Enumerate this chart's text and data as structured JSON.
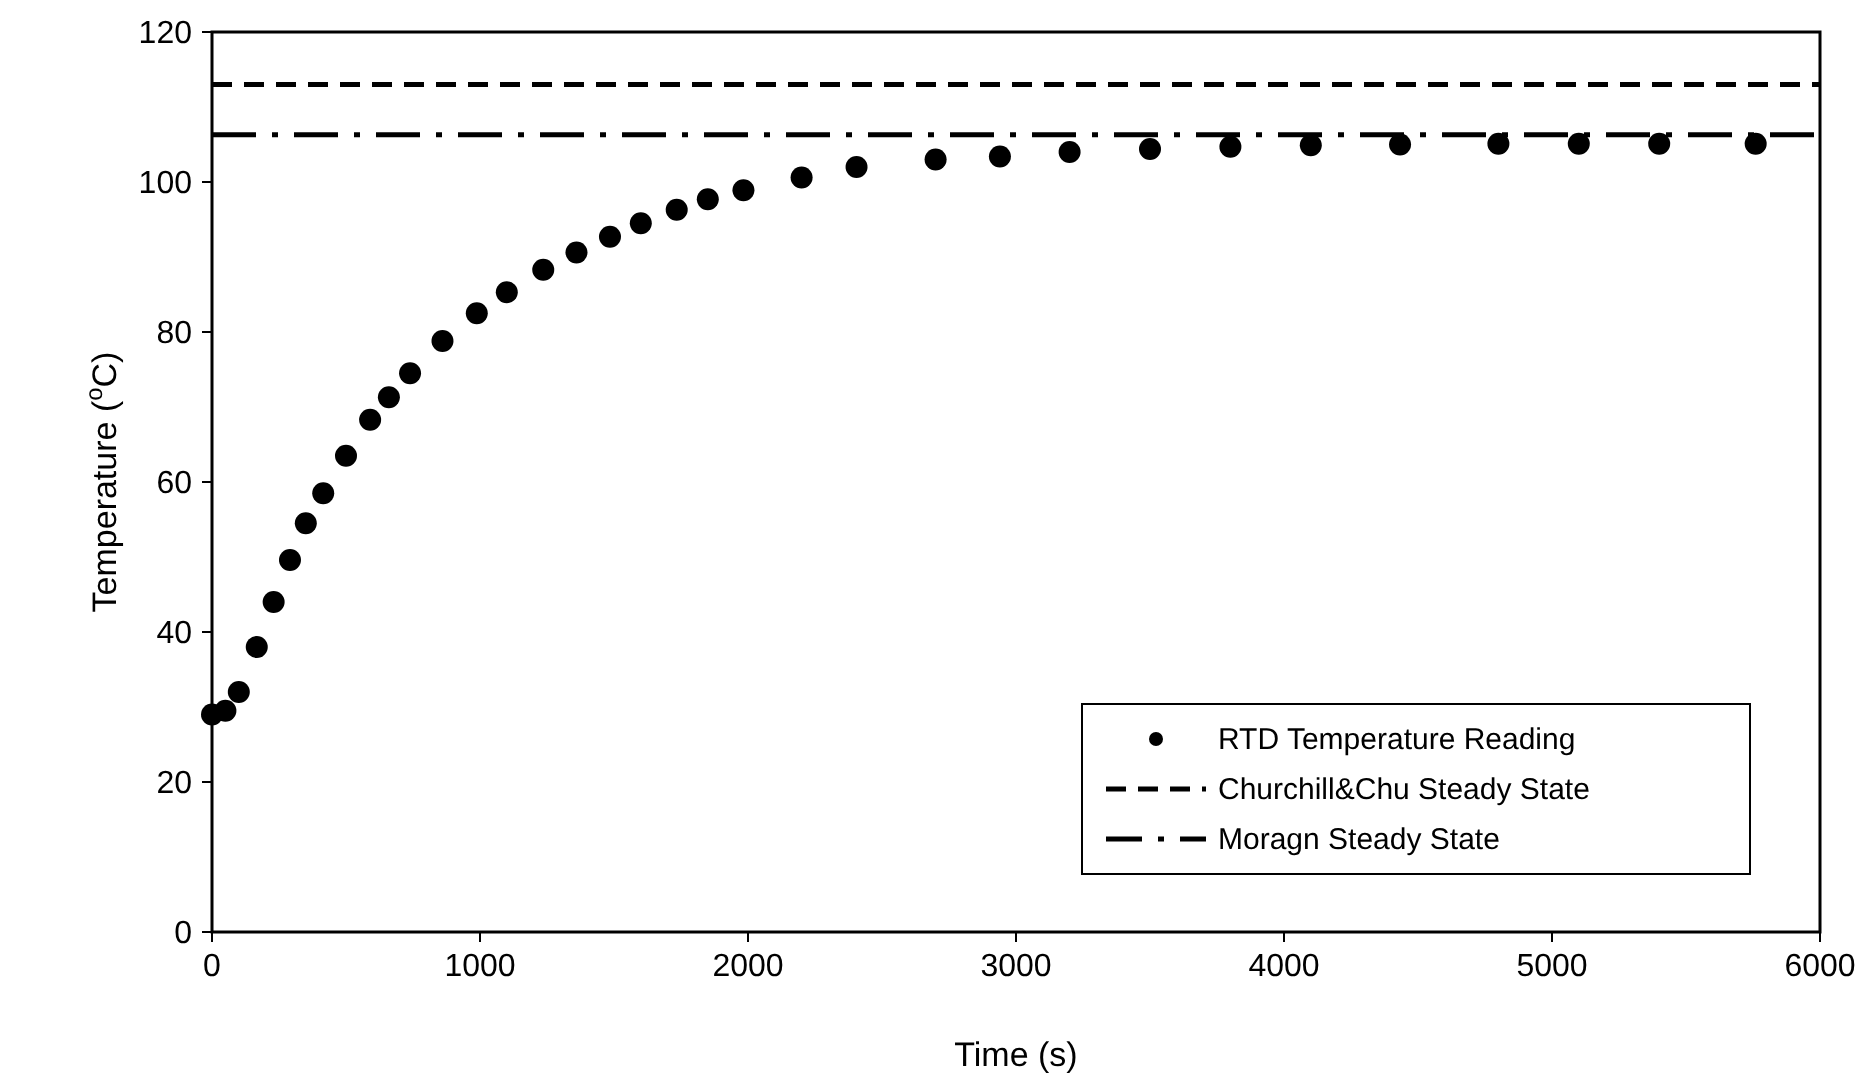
{
  "chart_data": {
    "type": "scatter",
    "xlabel": "Time (s)",
    "ylabel": "Temperature ($^{o}$C)",
    "xlim": [
      0,
      6000
    ],
    "xticks": [
      0,
      1000,
      2000,
      3000,
      4000,
      5000,
      6000
    ],
    "ylim": [
      0,
      120
    ],
    "yticks": [
      0,
      20,
      40,
      60,
      80,
      100,
      120
    ],
    "grid": false,
    "legend": "bottom right",
    "marker": "circle",
    "series": [
      {
        "name": "RTD Temperature Reading",
        "color": "#000000",
        "x": [
          0,
          50,
          100,
          167,
          230,
          291,
          350,
          415,
          500,
          590,
          660,
          739,
          860,
          988,
          1100,
          1236,
          1360,
          1485,
          1600,
          1734,
          1850,
          1983,
          2200,
          2405,
          2700,
          2940,
          3200,
          3500,
          3800,
          4100,
          4433,
          4800,
          5100,
          5400,
          5760
        ],
        "values": [
          29,
          29.5,
          32,
          38,
          44,
          49.6,
          54.5,
          58.5,
          63.5,
          68.3,
          71.3,
          74.5,
          78.8,
          82.5,
          85.3,
          88.3,
          90.6,
          92.7,
          94.5,
          96.3,
          97.7,
          98.9,
          100.6,
          102,
          103,
          103.4,
          104,
          104.4,
          104.7,
          104.9,
          105,
          105.1,
          105.1,
          105.1,
          105.1
        ]
      }
    ],
    "ref_lines": [
      {
        "axis": "y",
        "value": 113,
        "label": "Churchill&Chu Steady State",
        "color": "#000000",
        "line_style": "dashed"
      },
      {
        "axis": "y",
        "value": 106.3,
        "label": "Moragn Steady State",
        "color": "#000000",
        "line_style": "dashdot"
      }
    ]
  }
}
